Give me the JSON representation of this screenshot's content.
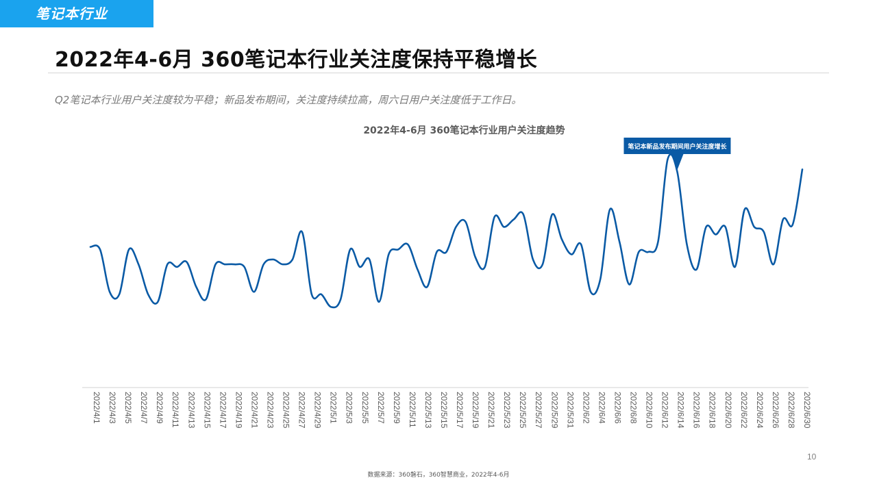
{
  "section_tag": "笔记本行业",
  "title": "2022年4-6月 360笔记本行业关注度保持平稳增长",
  "subtitle": "Q2笔记本行业用户关注度较为平稳；新品发布期间，关注度持续拉高，周六日用户关注度低于工作日。",
  "page_number": "10",
  "source": "数据来源：360磐石，360智慧商业，2022年4-6月",
  "colors": {
    "line": "#0a5aa5",
    "tag_bg": "#1aa3ee",
    "callout_bg": "#0a5aa5"
  },
  "chart_data": {
    "type": "line",
    "title": "2022年4-6月 360笔记本行业用户关注度趋势",
    "xlabel": "",
    "ylabel": "",
    "y_axis_visible": false,
    "grid": false,
    "ylim": [
      0,
      100
    ],
    "x_tick_labels": [
      "2022/4/1",
      "2022/4/3",
      "2022/4/5",
      "2022/4/7",
      "2022/4/9",
      "2022/4/11",
      "2022/4/13",
      "2022/4/15",
      "2022/4/17",
      "2022/4/19",
      "2022/4/21",
      "2022/4/23",
      "2022/4/25",
      "2022/4/27",
      "2022/4/29",
      "2022/5/1",
      "2022/5/3",
      "2022/5/5",
      "2022/5/7",
      "2022/5/9",
      "2022/5/11",
      "2022/5/13",
      "2022/5/15",
      "2022/5/17",
      "2022/5/19",
      "2022/5/21",
      "2022/5/23",
      "2022/5/25",
      "2022/5/27",
      "2022/5/29",
      "2022/5/31",
      "2022/6/2",
      "2022/6/4",
      "2022/6/6",
      "2022/6/8",
      "2022/6/10",
      "2022/6/12",
      "2022/6/14",
      "2022/6/16",
      "2022/6/18",
      "2022/6/20",
      "2022/6/22",
      "2022/6/24",
      "2022/6/26",
      "2022/6/28",
      "2022/6/30"
    ],
    "series": [
      {
        "values": [
          56,
          55,
          38,
          37,
          55,
          49,
          37,
          34,
          49,
          48,
          50,
          40,
          35,
          49,
          49,
          49,
          48,
          38,
          49,
          51,
          49,
          51,
          62,
          37,
          37,
          32,
          35,
          55,
          48,
          51,
          34,
          53,
          55,
          57,
          47,
          40,
          54,
          54,
          64,
          66,
          52,
          48,
          68,
          64,
          67,
          69,
          51,
          49,
          69,
          59,
          53,
          57,
          38,
          43,
          71,
          58,
          41,
          54,
          54,
          58,
          91,
          86,
          57,
          47,
          64,
          61,
          64,
          48,
          71,
          64,
          62,
          49,
          67,
          65,
          87
        ]
      }
    ],
    "annotations": [
      {
        "text": "笔记本新品发布期间用户关注度增长",
        "x_index": 61
      }
    ]
  }
}
